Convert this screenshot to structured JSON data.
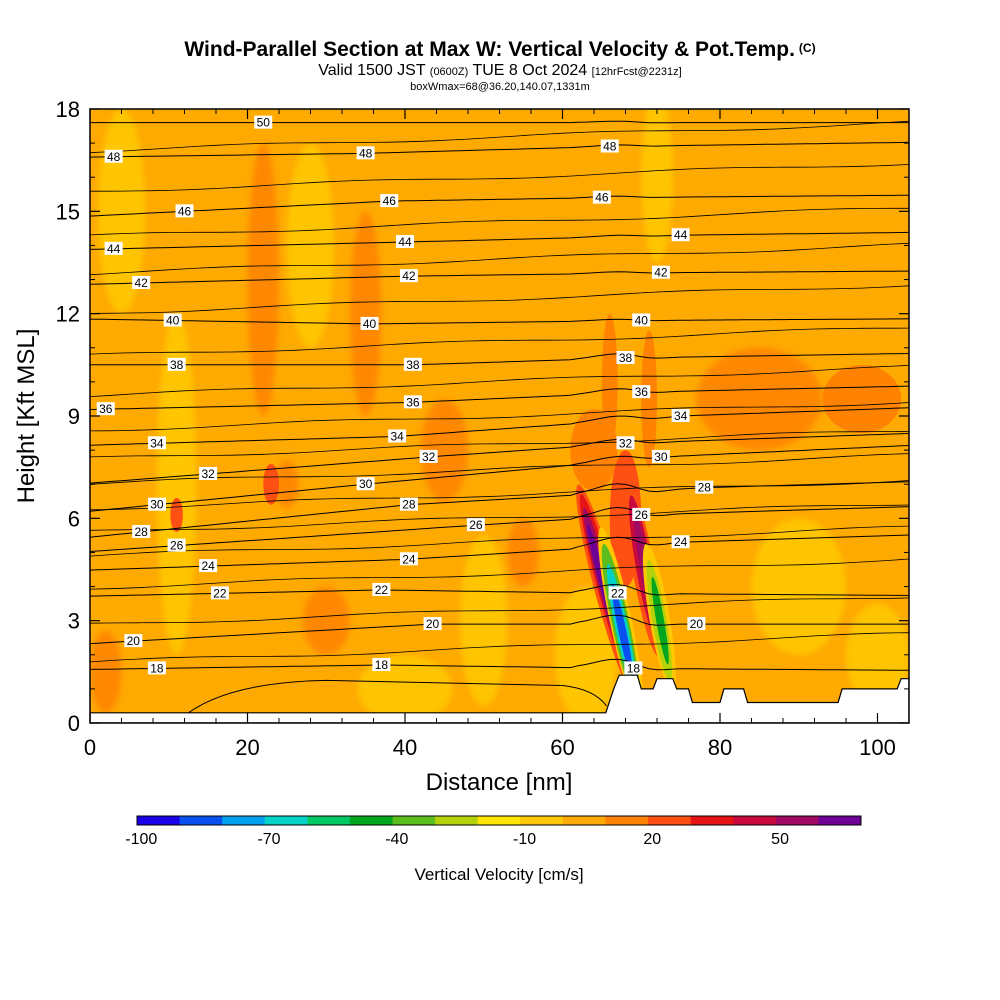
{
  "title": {
    "line1": "Wind-Parallel Section at Max W: Vertical Velocity & Pot.Temp.",
    "copyright": "(C)",
    "line2_a": "Valid 1500 JST",
    "line2_b": "(0600Z)",
    "line2_c": "TUE 8 Oct 2024",
    "line2_d": "[12hrFcst@2231z]",
    "line3": "boxWmax=68@36.20,140.07,1331m"
  },
  "chart_data": {
    "type": "heatmap",
    "title": "Wind-Parallel Section at Max W: Vertical Velocity & Pot.Temp.",
    "xlabel": "Distance [nm]",
    "ylabel": "Height [Kft MSL]",
    "xlim": [
      0,
      104
    ],
    "ylim": [
      0,
      18
    ],
    "x_ticks": [
      0,
      20,
      40,
      60,
      80,
      100
    ],
    "y_ticks": [
      0,
      3,
      6,
      9,
      12,
      15,
      18
    ],
    "colorbar": {
      "title": "Vertical Velocity [cm/s]",
      "tick_labels": [
        "-100",
        "-70",
        "-40",
        "-10",
        "20",
        "50"
      ],
      "tick_values": [
        -100,
        -70,
        -40,
        -10,
        20,
        50
      ],
      "levels": [
        -100,
        -90,
        -80,
        -70,
        -60,
        -50,
        -40,
        -30,
        -20,
        -10,
        0,
        10,
        20,
        30,
        40,
        50,
        60
      ],
      "colors": [
        "#1a00e6",
        "#0a50f0",
        "#00a0f0",
        "#00d2c8",
        "#00c864",
        "#00a51e",
        "#5abe1e",
        "#b4d20a",
        "#ffe600",
        "#ffc800",
        "#ffaa00",
        "#ff8200",
        "#ff5014",
        "#e61414",
        "#c80a3c",
        "#a00a64",
        "#6e0096"
      ]
    },
    "field_description_points": [
      {
        "x": 65.5,
        "y": 4.0,
        "w": 60
      },
      {
        "x": 67.5,
        "y": 3.0,
        "w": -90
      },
      {
        "x": 70.5,
        "y": 4.5,
        "w": 40
      },
      {
        "x": 72.5,
        "y": 3.0,
        "w": -40
      },
      {
        "x": 64.0,
        "y": 8.0,
        "w": 15
      },
      {
        "x": 70.5,
        "y": 9.5,
        "w": 15
      },
      {
        "x": 98.0,
        "y": 9.5,
        "w": 15
      },
      {
        "x": 72.0,
        "y": 16.0,
        "w": -15
      }
    ],
    "potential_temperature_labels": [
      {
        "text": "50",
        "x": 22,
        "y": 17.6
      },
      {
        "text": "48",
        "x": 3,
        "y": 16.6
      },
      {
        "text": "48",
        "x": 35,
        "y": 16.7
      },
      {
        "text": "48",
        "x": 66,
        "y": 16.9
      },
      {
        "text": "46",
        "x": 12,
        "y": 15.0
      },
      {
        "text": "46",
        "x": 38,
        "y": 15.3
      },
      {
        "text": "46",
        "x": 65,
        "y": 15.4
      },
      {
        "text": "44",
        "x": 3,
        "y": 13.9
      },
      {
        "text": "44",
        "x": 40,
        "y": 14.1
      },
      {
        "text": "44",
        "x": 75,
        "y": 14.3
      },
      {
        "text": "42",
        "x": 6.5,
        "y": 12.9
      },
      {
        "text": "42",
        "x": 40.5,
        "y": 13.1
      },
      {
        "text": "42",
        "x": 72.5,
        "y": 13.2
      },
      {
        "text": "40",
        "x": 10.5,
        "y": 11.8
      },
      {
        "text": "40",
        "x": 35.5,
        "y": 11.7
      },
      {
        "text": "40",
        "x": 70,
        "y": 11.8
      },
      {
        "text": "38",
        "x": 11,
        "y": 10.5
      },
      {
        "text": "38",
        "x": 41,
        "y": 10.5
      },
      {
        "text": "38",
        "x": 68,
        "y": 10.7
      },
      {
        "text": "36",
        "x": 2,
        "y": 9.2
      },
      {
        "text": "36",
        "x": 41,
        "y": 9.4
      },
      {
        "text": "36",
        "x": 70,
        "y": 9.7
      },
      {
        "text": "34",
        "x": 8.5,
        "y": 8.2
      },
      {
        "text": "34",
        "x": 39,
        "y": 8.4
      },
      {
        "text": "34",
        "x": 75,
        "y": 9.0
      },
      {
        "text": "32",
        "x": 15,
        "y": 7.3
      },
      {
        "text": "32",
        "x": 43,
        "y": 7.8
      },
      {
        "text": "32",
        "x": 68,
        "y": 8.2
      },
      {
        "text": "30",
        "x": 8.5,
        "y": 6.4
      },
      {
        "text": "30",
        "x": 35,
        "y": 7.0
      },
      {
        "text": "30",
        "x": 72.5,
        "y": 7.8
      },
      {
        "text": "28",
        "x": 6.5,
        "y": 5.6
      },
      {
        "text": "28",
        "x": 40.5,
        "y": 6.4
      },
      {
        "text": "28",
        "x": 78,
        "y": 6.9
      },
      {
        "text": "26",
        "x": 11,
        "y": 5.2
      },
      {
        "text": "26",
        "x": 49,
        "y": 5.8
      },
      {
        "text": "26",
        "x": 70,
        "y": 6.1
      },
      {
        "text": "24",
        "x": 15,
        "y": 4.6
      },
      {
        "text": "24",
        "x": 40.5,
        "y": 4.8
      },
      {
        "text": "24",
        "x": 75,
        "y": 5.3
      },
      {
        "text": "22",
        "x": 16.5,
        "y": 3.8
      },
      {
        "text": "22",
        "x": 37,
        "y": 3.9
      },
      {
        "text": "22",
        "x": 67,
        "y": 3.8
      },
      {
        "text": "20",
        "x": 5.5,
        "y": 2.4
      },
      {
        "text": "20",
        "x": 43.5,
        "y": 2.9
      },
      {
        "text": "20",
        "x": 77,
        "y": 2.9
      },
      {
        "text": "18",
        "x": 8.5,
        "y": 1.6
      },
      {
        "text": "18",
        "x": 37,
        "y": 1.7
      },
      {
        "text": "18",
        "x": 69,
        "y": 1.6
      }
    ],
    "terrain": [
      {
        "x": 0,
        "y": 0.3
      },
      {
        "x": 65.5,
        "y": 0.3
      },
      {
        "x": 66.5,
        "y": 1.0
      },
      {
        "x": 67.2,
        "y": 1.4
      },
      {
        "x": 69.5,
        "y": 1.4
      },
      {
        "x": 70,
        "y": 1.0
      },
      {
        "x": 71.5,
        "y": 1.0
      },
      {
        "x": 72,
        "y": 1.3
      },
      {
        "x": 74,
        "y": 1.3
      },
      {
        "x": 74.5,
        "y": 1.0
      },
      {
        "x": 76,
        "y": 1.0
      },
      {
        "x": 76.5,
        "y": 0.6
      },
      {
        "x": 80,
        "y": 0.6
      },
      {
        "x": 80.5,
        "y": 1.0
      },
      {
        "x": 83,
        "y": 1.0
      },
      {
        "x": 83.5,
        "y": 0.6
      },
      {
        "x": 95,
        "y": 0.6
      },
      {
        "x": 95.5,
        "y": 1.0
      },
      {
        "x": 102.5,
        "y": 1.0
      },
      {
        "x": 103,
        "y": 1.3
      },
      {
        "x": 104,
        "y": 1.3
      }
    ]
  }
}
